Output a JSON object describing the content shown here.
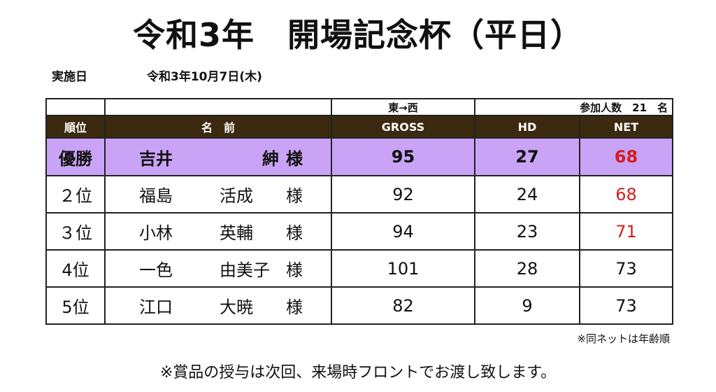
{
  "title": "令和3年　開場記念杯（平日）",
  "date": {
    "label": "実施日",
    "value": "令和3年10月7日(木)"
  },
  "table": {
    "meta": {
      "direction": "東→西",
      "participants": "参加人数　21　名"
    },
    "headers": {
      "rank": "順位",
      "name": "名　前",
      "gross": "GROSS",
      "hd": "HD",
      "net": "NET"
    },
    "rows": [
      {
        "rank": "優勝",
        "family": "吉井",
        "given": "紳",
        "honorific": "様",
        "gross": "95",
        "hd": "27",
        "net": "68",
        "net_color": "red"
      },
      {
        "rank": "２位",
        "family": "福島",
        "given": "活成",
        "honorific": "様",
        "gross": "92",
        "hd": "24",
        "net": "68",
        "net_color": "red"
      },
      {
        "rank": "３位",
        "family": "小林",
        "given": "英輔",
        "honorific": "様",
        "gross": "94",
        "hd": "23",
        "net": "71",
        "net_color": "red"
      },
      {
        "rank": "4位",
        "family": "一色",
        "given": "由美子",
        "honorific": "様",
        "gross": "101",
        "hd": "28",
        "net": "73",
        "net_color": "black"
      },
      {
        "rank": "5位",
        "family": "江口",
        "given": "大暁",
        "honorific": "様",
        "gross": "82",
        "hd": "9",
        "net": "73",
        "net_color": "black"
      }
    ]
  },
  "note": "※同ネットは年齢順",
  "footer": "※賞品の授与は次回、来場時フロントでお渡し致します。",
  "colors": {
    "header_bg": "#3b2a0f",
    "winner_bg": "#c9a3f5",
    "net_red": "#d41e1e"
  }
}
